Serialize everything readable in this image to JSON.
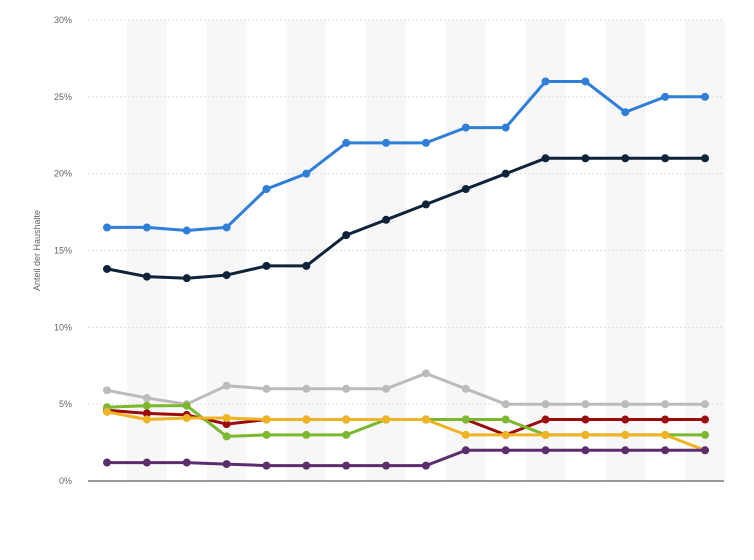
{
  "chart_data": {
    "type": "line",
    "ylabel": "Anteil der Haushalte",
    "y_unit": "%",
    "ylim": [
      0,
      30
    ],
    "y_ticks": [
      0,
      5,
      10,
      15,
      20,
      25,
      30
    ],
    "y_tick_labels": [
      "0%",
      "5%",
      "10%",
      "15%",
      "20%",
      "25%",
      "30%"
    ],
    "grid": true,
    "legend": "none",
    "series": [
      {
        "color": "#2f7ed8",
        "values": [
          16.5,
          16.5,
          16.3,
          16.5,
          19,
          20,
          22,
          22,
          22,
          23,
          23,
          26,
          26,
          24,
          25,
          25
        ]
      },
      {
        "color": "#0d233a",
        "values": [
          13.8,
          13.3,
          13.2,
          13.4,
          14,
          14,
          16,
          17,
          18,
          19,
          20,
          21,
          21,
          21,
          21,
          21
        ]
      },
      {
        "color": "#bbbbbb",
        "values": [
          5.9,
          5.4,
          5.0,
          6.2,
          6.0,
          6.0,
          6.0,
          6.0,
          7.0,
          6.0,
          5.0,
          5.0,
          5.0,
          5.0,
          5.0,
          5.0
        ]
      },
      {
        "color": "#9c0b0b",
        "values": [
          4.6,
          4.4,
          4.3,
          3.7,
          4.0,
          4.0,
          4.0,
          4.0,
          4.0,
          4.0,
          3.0,
          4.0,
          4.0,
          4.0,
          4.0,
          4.0
        ]
      },
      {
        "color": "#7cb82f",
        "values": [
          4.8,
          4.9,
          4.9,
          2.9,
          3.0,
          3.0,
          3.0,
          4.0,
          4.0,
          4.0,
          4.0,
          3.0,
          3.0,
          3.0,
          3.0,
          3.0
        ]
      },
      {
        "color": "#f0b323",
        "values": [
          4.5,
          4.0,
          4.1,
          4.1,
          4.0,
          4.0,
          4.0,
          4.0,
          4.0,
          3.0,
          3.0,
          3.0,
          3.0,
          3.0,
          3.0,
          2.0
        ]
      },
      {
        "color": "#5c2d6e",
        "values": [
          1.2,
          1.2,
          1.2,
          1.1,
          1.0,
          1.0,
          1.0,
          1.0,
          1.0,
          2.0,
          2.0,
          2.0,
          2.0,
          2.0,
          2.0,
          2.0
        ]
      }
    ]
  }
}
